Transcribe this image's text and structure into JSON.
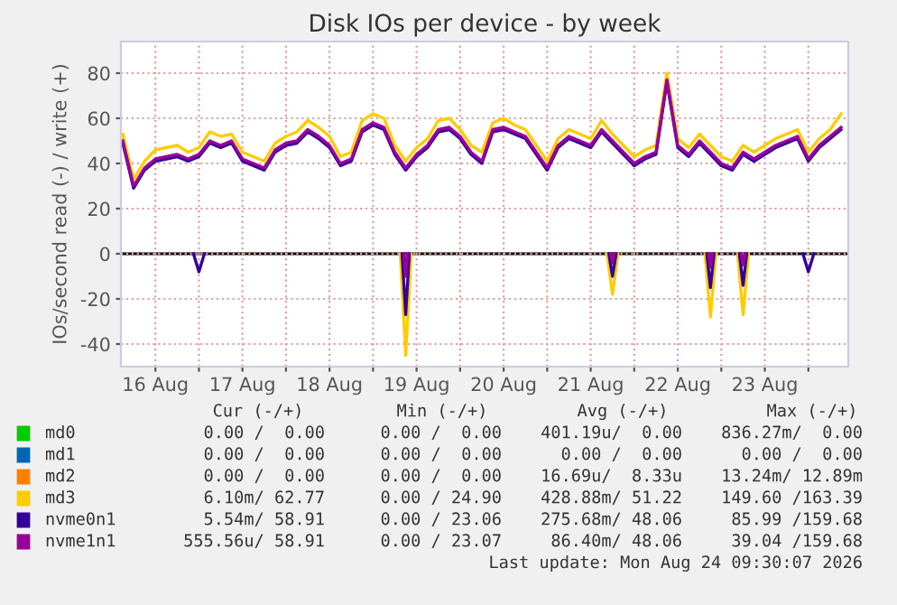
{
  "chart_data": {
    "type": "line",
    "title": "Disk IOs per device - by week",
    "ylabel": "IOs/second read (-) / write (+)",
    "x": [
      "2026-08-16T03:00",
      "2026-08-16T06:00",
      "2026-08-16T09:00",
      "2026-08-16T12:00",
      "2026-08-16T15:00",
      "2026-08-16T18:00",
      "2026-08-16T21:00",
      "2026-08-17T00:00",
      "2026-08-17T03:00",
      "2026-08-17T06:00",
      "2026-08-17T09:00",
      "2026-08-17T12:00",
      "2026-08-17T15:00",
      "2026-08-17T18:00",
      "2026-08-17T21:00",
      "2026-08-18T00:00",
      "2026-08-18T03:00",
      "2026-08-18T06:00",
      "2026-08-18T09:00",
      "2026-08-18T12:00",
      "2026-08-18T15:00",
      "2026-08-18T18:00",
      "2026-08-18T21:00",
      "2026-08-19T00:00",
      "2026-08-19T03:00",
      "2026-08-19T06:00",
      "2026-08-19T09:00",
      "2026-08-19T12:00",
      "2026-08-19T15:00",
      "2026-08-19T18:00",
      "2026-08-19T21:00",
      "2026-08-20T00:00",
      "2026-08-20T03:00",
      "2026-08-20T06:00",
      "2026-08-20T09:00",
      "2026-08-20T12:00",
      "2026-08-20T15:00",
      "2026-08-20T18:00",
      "2026-08-20T21:00",
      "2026-08-21T00:00",
      "2026-08-21T03:00",
      "2026-08-21T06:00",
      "2026-08-21T09:00",
      "2026-08-21T12:00",
      "2026-08-21T15:00",
      "2026-08-21T18:00",
      "2026-08-21T21:00",
      "2026-08-22T00:00",
      "2026-08-22T03:00",
      "2026-08-22T06:00",
      "2026-08-22T09:00",
      "2026-08-22T12:00",
      "2026-08-22T15:00",
      "2026-08-22T18:00",
      "2026-08-22T21:00",
      "2026-08-23T00:00",
      "2026-08-23T03:00",
      "2026-08-23T06:00",
      "2026-08-23T09:00",
      "2026-08-23T12:00",
      "2026-08-23T15:00",
      "2026-08-23T18:00",
      "2026-08-23T21:00",
      "2026-08-24T00:00",
      "2026-08-24T03:00",
      "2026-08-24T06:00",
      "2026-08-24T09:00"
    ],
    "series": [
      {
        "name": "md0",
        "color": "#00cc00",
        "values": [
          null,
          null,
          null,
          null,
          null,
          null,
          null,
          null,
          null,
          null,
          null,
          null,
          null,
          null,
          null,
          null,
          null,
          null,
          null,
          null,
          null,
          null,
          null,
          null,
          null,
          null,
          null,
          null,
          null,
          null,
          null,
          null,
          null,
          null,
          null,
          null,
          null,
          null,
          null,
          null,
          null,
          null,
          null,
          null,
          null,
          null,
          null,
          null,
          null,
          null,
          null,
          null,
          null,
          null,
          null,
          null,
          null,
          null,
          null,
          null,
          null,
          null,
          null,
          null,
          null,
          null,
          null
        ]
      },
      {
        "name": "md1",
        "color": "#0066b3",
        "values": [
          null,
          null,
          null,
          null,
          null,
          null,
          null,
          null,
          null,
          null,
          null,
          null,
          null,
          null,
          null,
          null,
          null,
          null,
          null,
          null,
          null,
          null,
          null,
          null,
          null,
          null,
          null,
          null,
          null,
          null,
          null,
          null,
          null,
          null,
          null,
          null,
          null,
          null,
          null,
          null,
          null,
          null,
          null,
          null,
          null,
          null,
          null,
          null,
          null,
          null,
          null,
          null,
          null,
          null,
          null,
          null,
          null,
          null,
          null,
          null,
          null,
          null,
          null,
          null,
          null,
          null,
          null
        ]
      },
      {
        "name": "md2",
        "color": "#ff8000",
        "values": [
          null,
          null,
          null,
          null,
          null,
          null,
          null,
          null,
          null,
          null,
          null,
          null,
          null,
          null,
          null,
          null,
          null,
          null,
          null,
          null,
          null,
          null,
          null,
          null,
          null,
          null,
          null,
          null,
          null,
          null,
          null,
          null,
          null,
          null,
          null,
          null,
          null,
          null,
          null,
          null,
          null,
          null,
          null,
          null,
          null,
          null,
          null,
          null,
          null,
          null,
          null,
          null,
          null,
          null,
          null,
          null,
          null,
          null,
          null,
          null,
          null,
          null,
          null,
          null,
          null,
          null,
          null
        ]
      },
      {
        "name": "md3",
        "color": "#ffcc00",
        "values": [
          53,
          33,
          41,
          46,
          47,
          48,
          45,
          47,
          54,
          52,
          53,
          45,
          43,
          41,
          49,
          52,
          54,
          59,
          56,
          52,
          43,
          45,
          59,
          62,
          60,
          48,
          41,
          47,
          51,
          59,
          60,
          55,
          48,
          45,
          58,
          60,
          57,
          55,
          48,
          41,
          51,
          55,
          53,
          51,
          59,
          53,
          48,
          43,
          46,
          48,
          80,
          51,
          47,
          53,
          48,
          43,
          41,
          48,
          45,
          48,
          51,
          53,
          55,
          45,
          51,
          55,
          62
        ]
      },
      {
        "color": "#ffcc00",
        "x": [
          "2026-08-19T07:30",
          "2026-08-19T09:00",
          "2026-08-19T10:30",
          "2026-08-19T12:00",
          "2026-08-21T16:30",
          "2026-08-21T18:00",
          "2026-08-21T19:30",
          "2026-08-21T21:00",
          "2026-08-22T19:30",
          "2026-08-22T21:00",
          "2026-08-22T22:30",
          "2026-08-23T00:00",
          "2026-08-23T04:30",
          "2026-08-23T06:00",
          "2026-08-23T07:30"
        ],
        "values": [
          0,
          -45,
          0,
          null,
          0,
          -18,
          0,
          null,
          0,
          -28,
          0,
          null,
          0,
          -27,
          0
        ]
      },
      {
        "name": "nvme0n1",
        "color": "#330099",
        "values": [
          49,
          29,
          37,
          41,
          42,
          43,
          41,
          43,
          49,
          47,
          49,
          41,
          39,
          37,
          45,
          48,
          49,
          54,
          51,
          47,
          39,
          41,
          54,
          57,
          55,
          44,
          37,
          43,
          47,
          54,
          55,
          51,
          44,
          40,
          54,
          55,
          53,
          51,
          44,
          37,
          47,
          51,
          49,
          47,
          54,
          49,
          44,
          39,
          42,
          44,
          76,
          47,
          43,
          49,
          44,
          39,
          37,
          44,
          41,
          44,
          47,
          49,
          51,
          41,
          47,
          51,
          55
        ]
      },
      {
        "color": "#330099",
        "x": [
          "2026-08-16T22:30",
          "2026-08-17T00:00",
          "2026-08-17T01:30",
          "2026-08-18T00:00",
          "2026-08-19T08:00",
          "2026-08-19T09:00",
          "2026-08-19T10:00",
          "2026-08-20T00:00",
          "2026-08-21T17:00",
          "2026-08-21T18:00",
          "2026-08-21T19:00",
          "2026-08-22T00:00",
          "2026-08-22T20:00",
          "2026-08-22T21:00",
          "2026-08-22T22:00",
          "2026-08-23T00:00",
          "2026-08-23T05:00",
          "2026-08-23T06:00",
          "2026-08-23T07:00",
          "2026-08-23T12:00",
          "2026-08-23T22:30",
          "2026-08-24T00:00",
          "2026-08-24T01:30"
        ],
        "values": [
          0,
          -8,
          0,
          null,
          0,
          -27,
          0,
          null,
          0,
          -10,
          0,
          null,
          0,
          -15,
          0,
          null,
          0,
          -14,
          0,
          null,
          0,
          -8,
          0
        ]
      },
      {
        "name": "nvme1n1",
        "color": "#990099",
        "values": [
          50,
          30,
          38,
          42,
          43,
          44,
          42,
          44,
          50,
          48,
          50,
          42,
          40,
          38,
          46,
          49,
          50,
          55,
          52,
          48,
          40,
          42,
          55,
          58,
          56,
          45,
          38,
          44,
          48,
          55,
          56,
          52,
          45,
          41,
          55,
          56,
          54,
          52,
          45,
          38,
          48,
          52,
          50,
          48,
          55,
          50,
          45,
          40,
          43,
          45,
          77,
          48,
          44,
          50,
          45,
          40,
          38,
          45,
          42,
          45,
          48,
          50,
          52,
          42,
          48,
          52,
          56
        ]
      },
      {
        "color": "#990099",
        "x": [
          "2026-08-19T08:30",
          "2026-08-19T09:00",
          "2026-08-19T09:30",
          "2026-08-20T00:00",
          "2026-08-21T17:30",
          "2026-08-21T18:00",
          "2026-08-21T18:30",
          "2026-08-22T00:00",
          "2026-08-22T20:30",
          "2026-08-22T21:00",
          "2026-08-22T21:30",
          "2026-08-23T00:00",
          "2026-08-23T05:30",
          "2026-08-23T06:00",
          "2026-08-23T06:30"
        ],
        "values": [
          0,
          -10,
          0,
          null,
          0,
          -4,
          0,
          null,
          0,
          -6,
          0,
          null,
          0,
          -5,
          0
        ]
      }
    ],
    "xlim": [
      "2026-08-16T02:30",
      "2026-08-24T11:00"
    ],
    "xticks": [
      {
        "value": "2026-08-16T12:00",
        "label": "16 Aug"
      },
      {
        "value": "2026-08-17T00:00",
        "label": null
      },
      {
        "value": "2026-08-17T12:00",
        "label": "17 Aug"
      },
      {
        "value": "2026-08-18T00:00",
        "label": null
      },
      {
        "value": "2026-08-18T12:00",
        "label": "18 Aug"
      },
      {
        "value": "2026-08-19T00:00",
        "label": null
      },
      {
        "value": "2026-08-19T12:00",
        "label": "19 Aug"
      },
      {
        "value": "2026-08-20T00:00",
        "label": null
      },
      {
        "value": "2026-08-20T12:00",
        "label": "20 Aug"
      },
      {
        "value": "2026-08-21T00:00",
        "label": null
      },
      {
        "value": "2026-08-21T12:00",
        "label": "21 Aug"
      },
      {
        "value": "2026-08-22T00:00",
        "label": null
      },
      {
        "value": "2026-08-22T12:00",
        "label": "22 Aug"
      },
      {
        "value": "2026-08-23T00:00",
        "label": null
      },
      {
        "value": "2026-08-23T12:00",
        "label": "23 Aug"
      },
      {
        "value": "2026-08-24T00:00",
        "label": null
      }
    ],
    "ylim": [
      -50,
      94
    ],
    "yticks": [
      -40,
      -20,
      0,
      20,
      40,
      60,
      80
    ],
    "ref_lines": [
      {
        "axis": "y",
        "value": 0,
        "color": "#000000"
      }
    ],
    "grid": true,
    "legend": "bottom",
    "annotations": [
      "Cur (-/+)",
      "Min (-/+)",
      "Avg (-/+)",
      "Max (-/+)",
      "0.00 /  0.00",
      "0.00 /  0.00",
      "401.19u/  0.00",
      "836.27m/  0.00",
      "0.00 /  0.00",
      "0.00 /  0.00",
      "0.00 /  0.00",
      "0.00 /  0.00",
      "0.00 /  0.00",
      "0.00 /  0.00",
      "16.69u/  8.33u",
      "13.24m/ 12.89m",
      "6.10m/ 62.77",
      "0.00 / 24.90",
      "428.88m/ 51.22",
      "149.60 /163.39",
      "5.54m/ 58.91",
      "0.00 / 23.06",
      "275.68m/ 48.06",
      "85.99 /159.68",
      "555.56u/ 58.91",
      "0.00 / 23.07",
      "86.40m/ 48.06",
      "39.04 /159.68",
      "Last update: Mon Aug 24 09:30:07 2026"
    ]
  }
}
